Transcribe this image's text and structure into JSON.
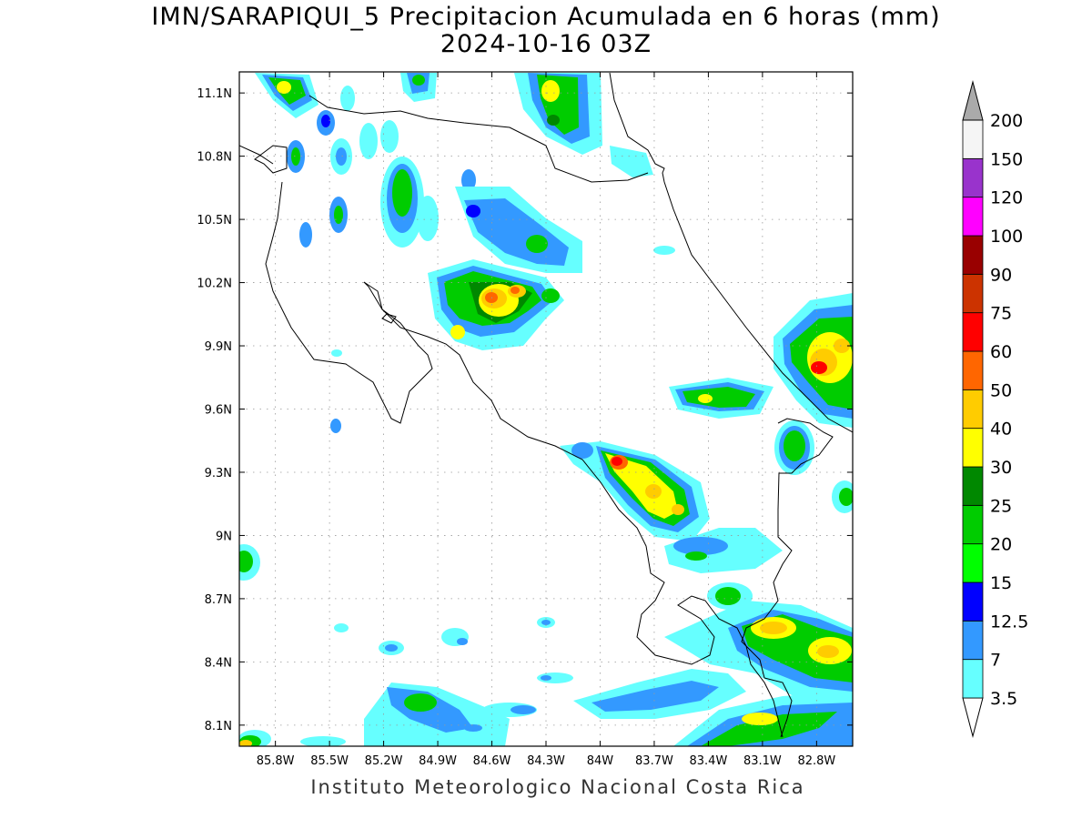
{
  "title": {
    "line1": "IMN/SARAPIQUI_5 Precipitacion Acumulada en 6 horas (mm)",
    "line2": "2024-10-16 03Z"
  },
  "footer": "Instituto Meteorologico Nacional Costa Rica",
  "map": {
    "lon_range": [
      -86.0,
      -82.6
    ],
    "lat_range": [
      8.0,
      11.2
    ],
    "lon_ticks": [
      {
        "value": -85.8,
        "label": "85.8W"
      },
      {
        "value": -85.5,
        "label": "85.5W"
      },
      {
        "value": -85.2,
        "label": "85.2W"
      },
      {
        "value": -84.9,
        "label": "84.9W"
      },
      {
        "value": -84.6,
        "label": "84.6W"
      },
      {
        "value": -84.3,
        "label": "84.3W"
      },
      {
        "value": -84.0,
        "label": "84W"
      },
      {
        "value": -83.7,
        "label": "83.7W"
      },
      {
        "value": -83.4,
        "label": "83.4W"
      },
      {
        "value": -83.1,
        "label": "83.1W"
      },
      {
        "value": -82.8,
        "label": "82.8W"
      }
    ],
    "lat_ticks": [
      {
        "value": 11.1,
        "label": "11.1N"
      },
      {
        "value": 10.8,
        "label": "10.8N"
      },
      {
        "value": 10.5,
        "label": "10.5N"
      },
      {
        "value": 10.2,
        "label": "10.2N"
      },
      {
        "value": 9.9,
        "label": "9.9N"
      },
      {
        "value": 9.6,
        "label": "9.6N"
      },
      {
        "value": 9.3,
        "label": "9.3N"
      },
      {
        "value": 9.0,
        "label": "9N"
      },
      {
        "value": 8.7,
        "label": "8.7N"
      },
      {
        "value": 8.4,
        "label": "8.4N"
      },
      {
        "value": 8.1,
        "label": "8.1N"
      }
    ],
    "grid": true
  },
  "colorbar": {
    "levels": [
      {
        "label": "3.5",
        "color": "#66ffff"
      },
      {
        "label": "7",
        "color": "#3399ff"
      },
      {
        "label": "12.5",
        "color": "#0000ff"
      },
      {
        "label": "15",
        "color": "#00ff00"
      },
      {
        "label": "20",
        "color": "#00cc00"
      },
      {
        "label": "25",
        "color": "#008800"
      },
      {
        "label": "30",
        "color": "#ffff00"
      },
      {
        "label": "40",
        "color": "#ffcc00"
      },
      {
        "label": "50",
        "color": "#ff6600"
      },
      {
        "label": "60",
        "color": "#ff0000"
      },
      {
        "label": "75",
        "color": "#cc3300"
      },
      {
        "label": "90",
        "color": "#990000"
      },
      {
        "label": "100",
        "color": "#ff00ff"
      },
      {
        "label": "120",
        "color": "#9933cc"
      },
      {
        "label": "150",
        "color": "#f5f5f5"
      },
      {
        "label": "200",
        "color": ""
      }
    ],
    "over_color": "#aaaaaa"
  }
}
